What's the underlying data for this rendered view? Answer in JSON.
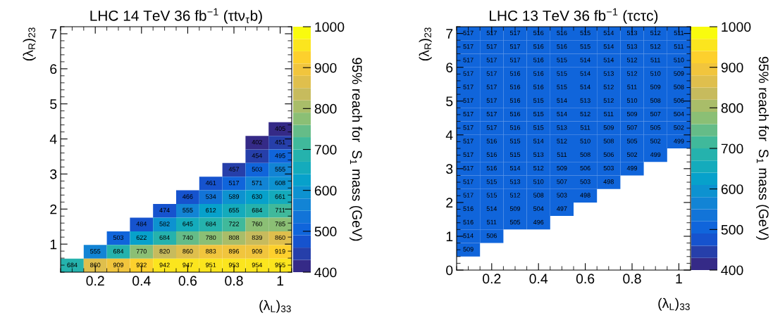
{
  "chart_data": [
    {
      "type": "heatmap",
      "title": "LHC 14 TeV 36 fb$^{−1}$ (τtν$_{τ}$b)",
      "xlabel": "(λ$_{L}$)$_{33}$",
      "ylabel": "(λ$_{R}$)$_{23}$",
      "clabel": "95% reach for  S$_{1}$ mass (GeV)",
      "x": [
        0.1,
        0.2,
        0.3,
        0.4,
        0.5,
        0.6,
        0.7,
        0.8,
        0.9,
        1.0
      ],
      "y": [
        4.28,
        3.89,
        3.51,
        3.12,
        2.73,
        2.34,
        1.95,
        1.56,
        1.17,
        0.78,
        0.39
      ],
      "xlim": [
        0.05,
        1.05
      ],
      "ylim": [
        0.2,
        7.2
      ],
      "xticks": [
        0.2,
        0.4,
        0.6,
        0.8,
        1
      ],
      "yticks": [
        1,
        2,
        3,
        4,
        5,
        6,
        7
      ],
      "clim": [
        400,
        1000
      ],
      "cticks": [
        400,
        500,
        600,
        700,
        800,
        900,
        1000
      ],
      "data_labels": true,
      "cells": [
        [
          null,
          null,
          null,
          null,
          null,
          null,
          null,
          null,
          null,
          405
        ],
        [
          null,
          null,
          null,
          null,
          null,
          null,
          null,
          null,
          402,
          451
        ],
        [
          null,
          null,
          null,
          null,
          null,
          null,
          null,
          null,
          454,
          495
        ],
        [
          null,
          null,
          null,
          null,
          null,
          null,
          null,
          457,
          503,
          555
        ],
        [
          null,
          null,
          null,
          null,
          null,
          null,
          461,
          517,
          571,
          608
        ],
        [
          null,
          null,
          null,
          null,
          null,
          466,
          534,
          589,
          630,
          661
        ],
        [
          null,
          null,
          null,
          null,
          474,
          555,
          612,
          655,
          684,
          711
        ],
        [
          null,
          null,
          null,
          484,
          582,
          645,
          684,
          722,
          760,
          785
        ],
        [
          null,
          null,
          503,
          622,
          684,
          740,
          780,
          808,
          839,
          860
        ],
        [
          null,
          555,
          684,
          770,
          820,
          860,
          883,
          896,
          909,
          919
        ],
        [
          684,
          860,
          909,
          932,
          942,
          947,
          951,
          953,
          954,
          955
        ]
      ]
    },
    {
      "type": "heatmap",
      "title": "LHC 13 TeV 36 fb$^{−1}$ (τcτc)",
      "xlabel": "(λ$_{L}$)$_{33}$",
      "ylabel": "(λ$_{R}$)$_{23}$",
      "clabel": "95% reach for  S$_{1}$ mass (GeV)",
      "x": [
        0.1,
        0.2,
        0.3,
        0.4,
        0.5,
        0.6,
        0.7,
        0.8,
        0.9,
        1.0
      ],
      "y": [
        7.0,
        6.6,
        6.2,
        5.8,
        5.4,
        5.0,
        4.6,
        4.2,
        3.8,
        3.4,
        3.0,
        2.6,
        2.2,
        1.8,
        1.4,
        1.0,
        0.6
      ],
      "xlim": [
        0.05,
        1.05
      ],
      "ylim": [
        0,
        7.2
      ],
      "xticks": [
        0.2,
        0.4,
        0.6,
        0.8,
        1
      ],
      "yticks": [
        0,
        1,
        2,
        3,
        4,
        5,
        6,
        7
      ],
      "clim": [
        400,
        1000
      ],
      "cticks": [
        400,
        500,
        600,
        700,
        800,
        900,
        1000
      ],
      "data_labels": true,
      "cells": [
        [
          517,
          517,
          517,
          516,
          516,
          515,
          514,
          513,
          512,
          511
        ],
        [
          517,
          517,
          517,
          516,
          516,
          515,
          514,
          513,
          512,
          511
        ],
        [
          517,
          517,
          517,
          516,
          515,
          514,
          514,
          512,
          511,
          510
        ],
        [
          517,
          517,
          516,
          516,
          515,
          514,
          513,
          512,
          510,
          509
        ],
        [
          517,
          517,
          516,
          516,
          515,
          514,
          512,
          511,
          509,
          508
        ],
        [
          517,
          517,
          516,
          515,
          514,
          513,
          512,
          510,
          508,
          506
        ],
        [
          517,
          517,
          516,
          515,
          514,
          512,
          511,
          509,
          507,
          504
        ],
        [
          517,
          517,
          516,
          515,
          513,
          511,
          509,
          507,
          505,
          502
        ],
        [
          517,
          516,
          515,
          514,
          512,
          510,
          508,
          505,
          502,
          499
        ],
        [
          517,
          516,
          515,
          513,
          511,
          508,
          506,
          502,
          499,
          null
        ],
        [
          517,
          516,
          514,
          512,
          509,
          506,
          503,
          499,
          null,
          null
        ],
        [
          517,
          515,
          513,
          510,
          507,
          503,
          498,
          null,
          null,
          null
        ],
        [
          517,
          515,
          512,
          508,
          503,
          498,
          null,
          null,
          null,
          null
        ],
        [
          516,
          514,
          509,
          504,
          497,
          null,
          null,
          null,
          null,
          null
        ],
        [
          516,
          511,
          505,
          496,
          null,
          null,
          null,
          null,
          null,
          null
        ],
        [
          514,
          506,
          null,
          null,
          null,
          null,
          null,
          null,
          null,
          null
        ],
        [
          509,
          null,
          null,
          null,
          null,
          null,
          null,
          null,
          null,
          null
        ]
      ]
    }
  ]
}
